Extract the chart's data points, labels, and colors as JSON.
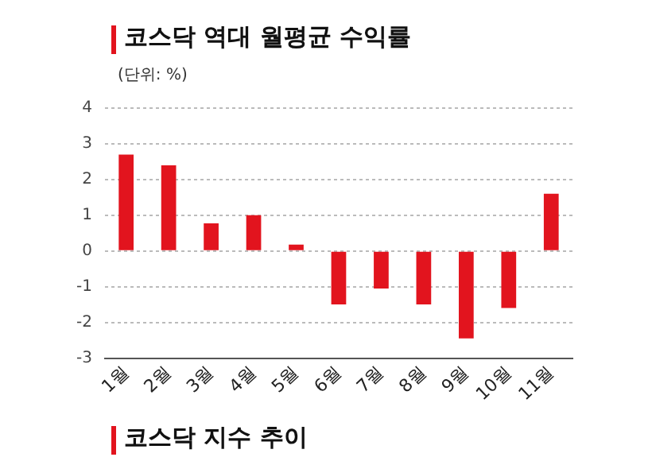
{
  "chart_data": {
    "type": "bar",
    "title": "코스닥 역대 월평균 수익률",
    "subtitle": "(단위: %)",
    "categories": [
      "1월",
      "2월",
      "3월",
      "4월",
      "5월",
      "6월",
      "7월",
      "8월",
      "9월",
      "10월",
      "11월"
    ],
    "values": [
      2.7,
      2.4,
      0.77,
      1.0,
      0.18,
      -1.5,
      -1.05,
      -1.5,
      -2.45,
      -1.6,
      1.6
    ],
    "color": "#e2141e",
    "ylim": [
      -3,
      4
    ],
    "yticks": [
      -3,
      -2,
      -1,
      0,
      1,
      2,
      3,
      4
    ],
    "grid": "y",
    "annotations": [
      "코스닥 지수 추이"
    ]
  }
}
